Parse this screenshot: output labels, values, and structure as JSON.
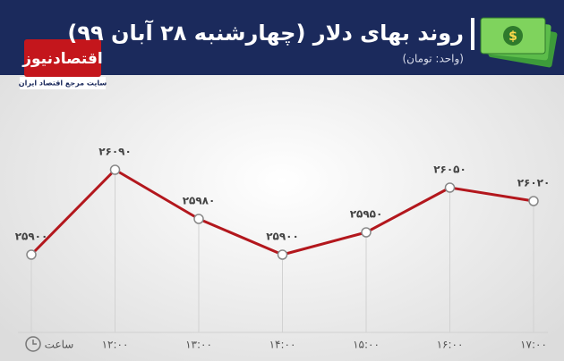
{
  "chart_data": {
    "type": "line",
    "title": "روند بهای دلار (چهارشنبه ۲۸ آبان ۹۹)",
    "subtitle": "(واحد: تومان)",
    "x_label": "ساعت",
    "logo": {
      "name": "اقتصادنیوز",
      "tagline": "سایت مرجع اقتصاد ایران"
    },
    "categories": [
      null,
      "۱۲:۰۰",
      "۱۳:۰۰",
      "۱۴:۰۰",
      "۱۵:۰۰",
      "۱۶:۰۰",
      "۱۷:۰۰"
    ],
    "values": [
      25900,
      26090,
      25980,
      25900,
      25950,
      26050,
      26020
    ],
    "value_labels": [
      "۲۵۹۰۰",
      "۲۶۰۹۰",
      "۲۵۹۸۰",
      "۲۵۹۰۰",
      "۲۵۹۵۰",
      "۲۶۰۵۰",
      "۲۶۰۲۰"
    ],
    "color": "#b3171d"
  }
}
